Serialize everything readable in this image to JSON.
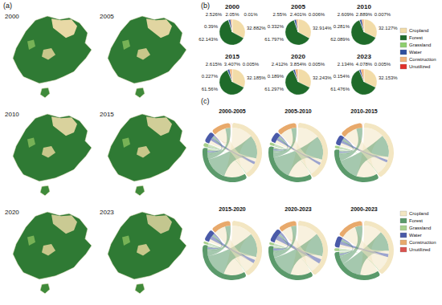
{
  "panel_labels": [
    "(a)",
    "(b)",
    "(c)"
  ],
  "land_use_maps": {
    "years": [
      "2000",
      "2005",
      "2010",
      "2015",
      "2020",
      "2023"
    ]
  },
  "chart_data": [
    {
      "type": "pie",
      "title": "2000",
      "legend": "right",
      "data_labels": true,
      "categories": [
        "Cropland",
        "Forest",
        "Grassland",
        "Water",
        "Construction",
        "Unutilized"
      ],
      "colors": [
        "#f2dca8",
        "#1f6b2a",
        "#8fcf6e",
        "#2f4f9e",
        "#f0b27a",
        "#e0302a"
      ],
      "values": [
        32.882,
        62.143,
        0.39,
        2.526,
        2.05,
        0.01
      ],
      "value_labels": [
        "32.882%",
        "62.143%",
        "0.39%",
        "2.526%",
        "2.05%",
        "0.01%"
      ]
    },
    {
      "type": "pie",
      "title": "2005",
      "legend": "right",
      "data_labels": true,
      "categories": [
        "Cropland",
        "Forest",
        "Grassland",
        "Water",
        "Construction",
        "Unutilized"
      ],
      "colors": [
        "#f2dca8",
        "#1f6b2a",
        "#8fcf6e",
        "#2f4f9e",
        "#f0b27a",
        "#e0302a"
      ],
      "values": [
        32.914,
        61.797,
        0.332,
        2.55,
        2.401,
        0.006
      ],
      "value_labels": [
        "32.914%",
        "61.797%",
        "0.332%",
        "2.55%",
        "2.401%",
        "0.006%"
      ]
    },
    {
      "type": "pie",
      "title": "2010",
      "legend": "right",
      "data_labels": true,
      "categories": [
        "Cropland",
        "Forest",
        "Grassland",
        "Water",
        "Construction",
        "Unutilized"
      ],
      "colors": [
        "#f2dca8",
        "#1f6b2a",
        "#8fcf6e",
        "#2f4f9e",
        "#f0b27a",
        "#e0302a"
      ],
      "values": [
        32.127,
        62.089,
        0.281,
        2.609,
        2.889,
        0.007
      ],
      "value_labels": [
        "32.127%",
        "62.089%",
        "0.281%",
        "2.609%",
        "2.889%",
        "0.007%"
      ]
    },
    {
      "type": "pie",
      "title": "2015",
      "legend": "right",
      "data_labels": true,
      "categories": [
        "Cropland",
        "Forest",
        "Grassland",
        "Water",
        "Construction",
        "Unutilized"
      ],
      "colors": [
        "#f2dca8",
        "#1f6b2a",
        "#8fcf6e",
        "#2f4f9e",
        "#f0b27a",
        "#e0302a"
      ],
      "values": [
        32.185,
        61.56,
        0.227,
        2.615,
        3.407,
        0.005
      ],
      "value_labels": [
        "32.185%",
        "61.56%",
        "0.227%",
        "2.615%",
        "3.407%",
        "0.005%"
      ]
    },
    {
      "type": "pie",
      "title": "2020",
      "legend": "right",
      "data_labels": true,
      "categories": [
        "Cropland",
        "Forest",
        "Grassland",
        "Water",
        "Construction",
        "Unutilized"
      ],
      "colors": [
        "#f2dca8",
        "#1f6b2a",
        "#8fcf6e",
        "#2f4f9e",
        "#f0b27a",
        "#e0302a"
      ],
      "values": [
        32.243,
        61.297,
        0.189,
        2.412,
        3.854,
        0.005
      ],
      "value_labels": [
        "32.243%",
        "61.297%",
        "0.189%",
        "2.412%",
        "3.854%",
        "0.005%"
      ]
    },
    {
      "type": "pie",
      "title": "2023",
      "legend": "right",
      "data_labels": true,
      "categories": [
        "Cropland",
        "Forest",
        "Grassland",
        "Water",
        "Construction",
        "Unutilized"
      ],
      "colors": [
        "#f2dca8",
        "#1f6b2a",
        "#8fcf6e",
        "#2f4f9e",
        "#f0b27a",
        "#e0302a"
      ],
      "values": [
        32.153,
        61.476,
        0.154,
        2.134,
        4.078,
        0.005
      ],
      "value_labels": [
        "32.153%",
        "61.476%",
        "0.154%",
        "2.134%",
        "4.078%",
        "0.005%"
      ]
    },
    {
      "type": "chord",
      "title": "2000-2005",
      "legend": "right",
      "nodes": [
        "Cropland",
        "Forest",
        "Grassland",
        "Water",
        "Construction",
        "Unutilized"
      ],
      "colors": [
        "#f3e6c2",
        "#5b9a6b",
        "#a8d08d",
        "#4a5aa8",
        "#e8a96b",
        "#d9534f"
      ],
      "links": [
        {
          "source": "Cropland",
          "target": "Forest",
          "value": 900
        },
        {
          "source": "Forest",
          "target": "Cropland",
          "value": 1000
        },
        {
          "source": "Cropland",
          "target": "Water",
          "value": 150
        },
        {
          "source": "Water",
          "target": "Cropland",
          "value": 120
        },
        {
          "source": "Cropland",
          "target": "Construction",
          "value": 500
        },
        {
          "source": "Forest",
          "target": "Construction",
          "value": 220
        },
        {
          "source": "Forest",
          "target": "Water",
          "value": 90
        },
        {
          "source": "Water",
          "target": "Forest",
          "value": 60
        },
        {
          "source": "Forest",
          "target": "Grassland",
          "value": 40
        },
        {
          "source": "Grassland",
          "target": "Forest",
          "value": 70
        },
        {
          "source": "Grassland",
          "target": "Cropland",
          "value": 30
        },
        {
          "source": "Unutilized",
          "target": "Water",
          "value": 4
        }
      ]
    },
    {
      "type": "chord",
      "title": "2005-2010",
      "legend": "right",
      "nodes": [
        "Cropland",
        "Forest",
        "Grassland",
        "Water",
        "Construction",
        "Unutilized"
      ],
      "colors": [
        "#f3e6c2",
        "#5b9a6b",
        "#a8d08d",
        "#4a5aa8",
        "#e8a96b",
        "#d9534f"
      ],
      "links": [
        {
          "source": "Cropland",
          "target": "Forest",
          "value": 1100
        },
        {
          "source": "Forest",
          "target": "Cropland",
          "value": 1200
        },
        {
          "source": "Cropland",
          "target": "Water",
          "value": 160
        },
        {
          "source": "Water",
          "target": "Cropland",
          "value": 130
        },
        {
          "source": "Cropland",
          "target": "Construction",
          "value": 600
        },
        {
          "source": "Forest",
          "target": "Construction",
          "value": 260
        },
        {
          "source": "Forest",
          "target": "Water",
          "value": 100
        },
        {
          "source": "Water",
          "target": "Forest",
          "value": 70
        },
        {
          "source": "Forest",
          "target": "Grassland",
          "value": 35
        },
        {
          "source": "Grassland",
          "target": "Forest",
          "value": 60
        },
        {
          "source": "Grassland",
          "target": "Cropland",
          "value": 25
        },
        {
          "source": "Unutilized",
          "target": "Water",
          "value": 3
        }
      ]
    },
    {
      "type": "chord",
      "title": "2010-2015",
      "legend": "right",
      "nodes": [
        "Cropland",
        "Forest",
        "Grassland",
        "Water",
        "Construction",
        "Unutilized"
      ],
      "colors": [
        "#f3e6c2",
        "#5b9a6b",
        "#a8d08d",
        "#4a5aa8",
        "#e8a96b",
        "#d9534f"
      ],
      "links": [
        {
          "source": "Cropland",
          "target": "Forest",
          "value": 950
        },
        {
          "source": "Forest",
          "target": "Cropland",
          "value": 1050
        },
        {
          "source": "Cropland",
          "target": "Water",
          "value": 140
        },
        {
          "source": "Water",
          "target": "Cropland",
          "value": 120
        },
        {
          "source": "Cropland",
          "target": "Construction",
          "value": 650
        },
        {
          "source": "Forest",
          "target": "Construction",
          "value": 280
        },
        {
          "source": "Forest",
          "target": "Water",
          "value": 95
        },
        {
          "source": "Water",
          "target": "Forest",
          "value": 65
        },
        {
          "source": "Forest",
          "target": "Grassland",
          "value": 30
        },
        {
          "source": "Grassland",
          "target": "Forest",
          "value": 55
        },
        {
          "source": "Grassland",
          "target": "Cropland",
          "value": 22
        },
        {
          "source": "Unutilized",
          "target": "Water",
          "value": 3
        }
      ]
    },
    {
      "type": "chord",
      "title": "2015-2020",
      "legend": "right",
      "nodes": [
        "Cropland",
        "Forest",
        "Grassland",
        "Water",
        "Construction",
        "Unutilized"
      ],
      "colors": [
        "#f3e6c2",
        "#5b9a6b",
        "#a8d08d",
        "#4a5aa8",
        "#e8a96b",
        "#d9534f"
      ],
      "links": [
        {
          "source": "Cropland",
          "target": "Forest",
          "value": 1000
        },
        {
          "source": "Forest",
          "target": "Cropland",
          "value": 1150
        },
        {
          "source": "Cropland",
          "target": "Water",
          "value": 150
        },
        {
          "source": "Water",
          "target": "Cropland",
          "value": 170
        },
        {
          "source": "Cropland",
          "target": "Construction",
          "value": 550
        },
        {
          "source": "Forest",
          "target": "Construction",
          "value": 260
        },
        {
          "source": "Forest",
          "target": "Water",
          "value": 90
        },
        {
          "source": "Water",
          "target": "Forest",
          "value": 80
        },
        {
          "source": "Forest",
          "target": "Grassland",
          "value": 28
        },
        {
          "source": "Grassland",
          "target": "Forest",
          "value": 50
        },
        {
          "source": "Grassland",
          "target": "Cropland",
          "value": 20
        },
        {
          "source": "Unutilized",
          "target": "Water",
          "value": 2
        }
      ]
    },
    {
      "type": "chord",
      "title": "2020-2023",
      "legend": "right",
      "nodes": [
        "Cropland",
        "Forest",
        "Grassland",
        "Water",
        "Construction",
        "Unutilized"
      ],
      "colors": [
        "#f3e6c2",
        "#5b9a6b",
        "#a8d08d",
        "#4a5aa8",
        "#e8a96b",
        "#d9534f"
      ],
      "links": [
        {
          "source": "Cropland",
          "target": "Forest",
          "value": 700
        },
        {
          "source": "Forest",
          "target": "Cropland",
          "value": 800
        },
        {
          "source": "Cropland",
          "target": "Water",
          "value": 110
        },
        {
          "source": "Water",
          "target": "Cropland",
          "value": 160
        },
        {
          "source": "Cropland",
          "target": "Construction",
          "value": 350
        },
        {
          "source": "Forest",
          "target": "Construction",
          "value": 180
        },
        {
          "source": "Forest",
          "target": "Water",
          "value": 70
        },
        {
          "source": "Water",
          "target": "Forest",
          "value": 75
        },
        {
          "source": "Forest",
          "target": "Grassland",
          "value": 20
        },
        {
          "source": "Grassland",
          "target": "Forest",
          "value": 40
        },
        {
          "source": "Grassland",
          "target": "Cropland",
          "value": 15
        },
        {
          "source": "Unutilized",
          "target": "Water",
          "value": 2
        }
      ]
    },
    {
      "type": "chord",
      "title": "2000-2023",
      "legend": "right",
      "nodes": [
        "Cropland",
        "Forest",
        "Grassland",
        "Water",
        "Construction",
        "Unutilized"
      ],
      "colors": [
        "#f3e6c2",
        "#5b9a6b",
        "#a8d08d",
        "#4a5aa8",
        "#e8a96b",
        "#d9534f"
      ],
      "links": [
        {
          "source": "Cropland",
          "target": "Forest",
          "value": 1500
        },
        {
          "source": "Forest",
          "target": "Cropland",
          "value": 1700
        },
        {
          "source": "Cropland",
          "target": "Water",
          "value": 260
        },
        {
          "source": "Water",
          "target": "Cropland",
          "value": 280
        },
        {
          "source": "Cropland",
          "target": "Construction",
          "value": 1300
        },
        {
          "source": "Forest",
          "target": "Construction",
          "value": 600
        },
        {
          "source": "Forest",
          "target": "Water",
          "value": 160
        },
        {
          "source": "Water",
          "target": "Forest",
          "value": 120
        },
        {
          "source": "Forest",
          "target": "Grassland",
          "value": 50
        },
        {
          "source": "Grassland",
          "target": "Forest",
          "value": 110
        },
        {
          "source": "Grassland",
          "target": "Cropland",
          "value": 45
        },
        {
          "source": "Unutilized",
          "target": "Water",
          "value": 6
        }
      ]
    }
  ]
}
